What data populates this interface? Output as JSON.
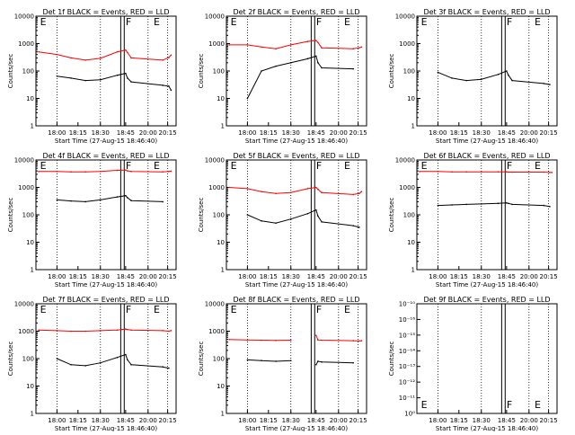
{
  "colors": {
    "events": "#000000",
    "lld": "#ff0000",
    "frame": "#000000"
  },
  "common": {
    "ylabel": "Counts/sec",
    "xlabel": "Start Time (27-Aug-15 18:46:40)",
    "xtick_labels": [
      "18:00",
      "18:15",
      "18:30",
      "18:45",
      "20:00",
      "20:15"
    ],
    "ytick_labels": [
      "1",
      "10",
      "100",
      "1000",
      "10000"
    ],
    "flags": [
      "E",
      "F",
      "E"
    ]
  },
  "chart_data": [
    {
      "type": "line",
      "title": "Det 1f BLACK = Events, RED = LLD",
      "ylim": [
        1,
        10000
      ],
      "yscale": "log",
      "x": [
        "17:50",
        "18:00",
        "18:10",
        "18:20",
        "18:30",
        "18:40",
        "18:45",
        "18:50",
        "19:00",
        "20:00",
        "20:10",
        "20:20"
      ],
      "series": [
        {
          "name": "Events",
          "values": [
            null,
            65,
            55,
            45,
            48,
            70,
            82,
            55,
            40,
            30,
            28,
            20
          ]
        },
        {
          "name": "LLD",
          "values": [
            500,
            400,
            300,
            250,
            290,
            500,
            580,
            470,
            300,
            250,
            310,
            380
          ]
        }
      ]
    },
    {
      "type": "line",
      "title": "Det 2f BLACK = Events, RED = LLD",
      "ylim": [
        1,
        10000
      ],
      "yscale": "log",
      "x": [
        "17:50",
        "18:00",
        "18:10",
        "18:20",
        "18:30",
        "18:40",
        "18:45",
        "18:50",
        "19:00",
        "20:00",
        "20:10",
        "20:20"
      ],
      "series": [
        {
          "name": "Events",
          "values": [
            null,
            10,
            100,
            150,
            200,
            280,
            350,
            200,
            130,
            120,
            null,
            null
          ]
        },
        {
          "name": "LLD",
          "values": [
            900,
            900,
            750,
            650,
            900,
            1200,
            1300,
            1100,
            700,
            650,
            700,
            750
          ]
        }
      ]
    },
    {
      "type": "line",
      "title": "Det 3f BLACK = Events, RED = LLD",
      "ylim": [
        1,
        10000
      ],
      "yscale": "log",
      "x": [
        "17:50",
        "18:00",
        "18:10",
        "18:20",
        "18:30",
        "18:40",
        "18:45",
        "18:50",
        "19:00",
        "20:00",
        "20:10",
        "20:20"
      ],
      "series": [
        {
          "name": "Events",
          "values": [
            null,
            90,
            55,
            45,
            50,
            75,
            100,
            70,
            45,
            35,
            32,
            null
          ]
        }
      ]
    },
    {
      "type": "line",
      "title": "Det 4f BLACK = Events, RED = LLD",
      "ylim": [
        1,
        10000
      ],
      "yscale": "log",
      "x": [
        "17:50",
        "18:00",
        "18:10",
        "18:20",
        "18:30",
        "18:40",
        "18:45",
        "18:50",
        "19:00",
        "20:00",
        "20:10",
        "20:20"
      ],
      "series": [
        {
          "name": "Events",
          "values": [
            null,
            350,
            320,
            300,
            350,
            450,
            500,
            420,
            330,
            300,
            null,
            null
          ]
        },
        {
          "name": "LLD",
          "values": [
            3800,
            3800,
            3700,
            3700,
            3800,
            4200,
            4300,
            4000,
            3800,
            3700,
            3800,
            3900
          ]
        }
      ]
    },
    {
      "type": "line",
      "title": "Det 5f BLACK = Events, RED = LLD",
      "ylim": [
        1,
        10000
      ],
      "yscale": "log",
      "x": [
        "17:50",
        "18:00",
        "18:10",
        "18:20",
        "18:30",
        "18:40",
        "18:45",
        "18:50",
        "19:00",
        "20:00",
        "20:10",
        "20:20"
      ],
      "series": [
        {
          "name": "Events",
          "values": [
            null,
            100,
            60,
            50,
            70,
            110,
            150,
            90,
            55,
            40,
            35,
            null
          ]
        },
        {
          "name": "LLD",
          "values": [
            1000,
            900,
            700,
            600,
            650,
            900,
            1000,
            850,
            650,
            550,
            600,
            700
          ]
        }
      ]
    },
    {
      "type": "line",
      "title": "Det 6f BLACK = Events, RED = LLD",
      "ylim": [
        1,
        10000
      ],
      "yscale": "log",
      "x": [
        "17:50",
        "18:00",
        "18:10",
        "18:20",
        "18:30",
        "18:40",
        "18:45",
        "18:50",
        "19:00",
        "20:00",
        "20:10",
        "20:20"
      ],
      "series": [
        {
          "name": "Events",
          "values": [
            null,
            220,
            230,
            240,
            250,
            260,
            270,
            260,
            240,
            220,
            200,
            null
          ]
        },
        {
          "name": "LLD",
          "values": [
            3800,
            3800,
            3700,
            3700,
            3700,
            3700,
            3700,
            3600,
            3600,
            3600,
            3500,
            3500
          ]
        }
      ]
    },
    {
      "type": "line",
      "title": "Det 7f BLACK = Events, RED = LLD",
      "ylim": [
        1,
        10000
      ],
      "yscale": "log",
      "x": [
        "17:50",
        "18:00",
        "18:10",
        "18:20",
        "18:30",
        "18:40",
        "18:45",
        "18:50",
        "19:00",
        "20:00",
        "20:10",
        "20:20"
      ],
      "series": [
        {
          "name": "Events",
          "values": [
            null,
            100,
            60,
            55,
            70,
            110,
            140,
            90,
            60,
            50,
            45,
            null
          ]
        },
        {
          "name": "LLD",
          "values": [
            1100,
            1050,
            1000,
            1000,
            1050,
            1100,
            1200,
            1150,
            1100,
            1050,
            1000,
            1050
          ]
        }
      ]
    },
    {
      "type": "line",
      "title": "Det 8f BLACK = Events, RED = LLD",
      "ylim": [
        1,
        10000
      ],
      "yscale": "log",
      "x": [
        "17:50",
        "18:00",
        "18:10",
        "18:20",
        "18:30",
        "18:40",
        "18:45",
        "18:50",
        "19:00",
        "20:00",
        "20:10",
        "20:20"
      ],
      "series": [
        {
          "name": "Events",
          "values": [
            null,
            90,
            85,
            80,
            85,
            null,
            60,
            80,
            75,
            70,
            null,
            null
          ]
        },
        {
          "name": "LLD",
          "values": [
            500,
            480,
            470,
            460,
            470,
            null,
            700,
            480,
            470,
            450,
            440,
            450
          ]
        }
      ]
    },
    {
      "type": "line",
      "title": "Det 9f BLACK = Events, RED = LLD",
      "ylim": [
        1,
        1e-10
      ],
      "yscale": "log",
      "ytick_labels": [
        "10⁰",
        "10⁻¹¹",
        "10⁻¹²",
        "10⁻¹³",
        "10⁻¹⁴",
        "10⁻¹⁵",
        "10⁻¹⁶",
        "10⁻¹⁰"
      ],
      "series": []
    }
  ]
}
